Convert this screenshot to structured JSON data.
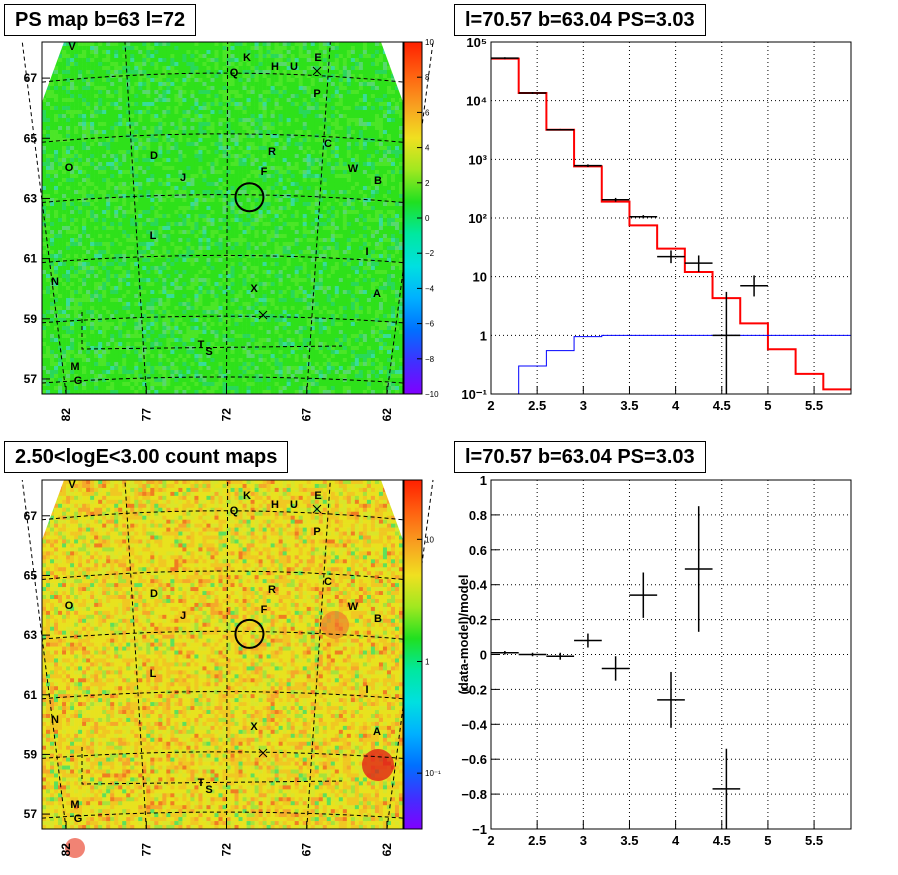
{
  "panels": {
    "map_top": {
      "title": "PS map b=63 l=72",
      "xticks": [
        "82",
        "77",
        "72",
        "67",
        "62"
      ],
      "yticks": [
        "67",
        "65",
        "63",
        "61",
        "59",
        "57"
      ],
      "colorbar_ticks": [
        "10",
        "8",
        "6",
        "4",
        "2",
        "0",
        "−2",
        "−4",
        "−6",
        "−8",
        "−10"
      ]
    },
    "map_bottom": {
      "title": "2.50<logE<3.00 count maps",
      "xticks": [
        "82",
        "77",
        "72",
        "67",
        "62"
      ],
      "yticks": [
        "67",
        "65",
        "63",
        "61",
        "59",
        "57"
      ],
      "colorbar_ticks": [
        "10",
        "1",
        "10⁻¹"
      ]
    },
    "spectrum": {
      "title": "l=70.57 b=63.04 PS=3.03",
      "xticks": [
        "2",
        "2.5",
        "3",
        "3.5",
        "4",
        "4.5",
        "5",
        "5.5"
      ],
      "yticks": [
        "10⁵",
        "10⁴",
        "10³",
        "10²",
        "10",
        "1",
        "10⁻¹"
      ]
    },
    "residual": {
      "title": "l=70.57 b=63.04 PS=3.03",
      "ylabel": "(data-model)/model",
      "xticks": [
        "2",
        "2.5",
        "3",
        "3.5",
        "4",
        "4.5",
        "5",
        "5.5"
      ],
      "yticks": [
        "1",
        "0.8",
        "0.6",
        "0.4",
        "0.2",
        "0",
        "−0.2",
        "−0.4",
        "−0.6",
        "−0.8",
        "−1"
      ]
    }
  },
  "source_labels": [
    "V",
    "K",
    "E",
    "Q",
    "H",
    "U",
    "P",
    "D",
    "R",
    "C",
    "O",
    "J",
    "F",
    "W",
    "B",
    "L",
    "I",
    "N",
    "X",
    "A",
    "T",
    "S",
    "M",
    "G"
  ],
  "chart_data": [
    {
      "type": "heatmap",
      "title": "PS map b=63 l=72",
      "xlabel": "",
      "ylabel": "",
      "xlim": [
        83.5,
        61
      ],
      "ylim": [
        56.5,
        68.2
      ],
      "colorbar_range": [
        -10,
        10
      ],
      "marker_circle": {
        "l": 70.57,
        "b": 63.04
      }
    },
    {
      "type": "line",
      "title": "l=70.57 b=63.04 PS=3.03",
      "xlim": [
        2,
        5.9
      ],
      "ylim": [
        0.1,
        100000
      ],
      "log_y": true,
      "grid": true,
      "series": [
        {
          "name": "",
          "color": "#ff0000",
          "edges": [
            2.0,
            2.3,
            2.6,
            2.9,
            3.2,
            3.5,
            3.8,
            4.1,
            4.4,
            4.7,
            5.0,
            5.3,
            5.6,
            5.9
          ],
          "values": [
            52000,
            13500,
            3200,
            760,
            190,
            75,
            30,
            12,
            4.3,
            1.6,
            0.58,
            0.22,
            0.12
          ]
        },
        {
          "name": "",
          "color": "#0000ff",
          "edges": [
            2.0,
            2.3,
            2.6,
            2.9,
            3.2,
            3.5,
            3.8,
            4.1,
            4.4,
            4.7,
            5.0,
            5.3,
            5.6,
            5.9
          ],
          "values": [
            0.1,
            0.3,
            0.55,
            0.95,
            1.0,
            1.0,
            1.0,
            1.0,
            1.0,
            1.0,
            1.0,
            1.0,
            1.0
          ]
        },
        {
          "name": "",
          "color": "#000000",
          "kind": "points",
          "x": [
            2.15,
            2.45,
            2.75,
            3.05,
            3.35,
            3.65,
            3.95,
            4.25,
            4.55,
            4.85
          ],
          "y": [
            53000,
            13500,
            3200,
            780,
            205,
            105,
            22,
            17,
            1.0,
            7.0
          ],
          "xerr": 0.15,
          "ylo": [
            51000,
            13000,
            3100,
            740,
            190,
            98,
            17,
            12,
            0.1,
            4.6
          ],
          "yhi": [
            55000,
            14000,
            3300,
            820,
            220,
            112,
            28,
            23,
            5.5,
            10.5
          ]
        }
      ]
    },
    {
      "type": "heatmap",
      "title": "2.50<logE<3.00 count maps",
      "xlim": [
        83.5,
        61
      ],
      "ylim": [
        56.5,
        68.2
      ],
      "colorbar_range": [
        0.03,
        30
      ],
      "log_color": true,
      "marker_circle": {
        "l": 70.57,
        "b": 63.04
      }
    },
    {
      "type": "scatter",
      "title": "l=70.57 b=63.04 PS=3.03",
      "ylabel": "(data-model)/model",
      "xlim": [
        2,
        5.9
      ],
      "ylim": [
        -1,
        1
      ],
      "grid": true,
      "series": [
        {
          "name": "",
          "x": [
            2.15,
            2.45,
            2.75,
            3.05,
            3.35,
            3.65,
            3.95,
            4.25,
            4.55
          ],
          "y": [
            0.01,
            0.0,
            -0.01,
            0.08,
            -0.08,
            0.34,
            -0.26,
            0.49,
            -0.77
          ],
          "xerr": 0.15,
          "yerr": [
            0.01,
            0.01,
            0.02,
            0.04,
            0.07,
            0.13,
            0.16,
            0.36,
            0.23
          ]
        }
      ]
    }
  ]
}
